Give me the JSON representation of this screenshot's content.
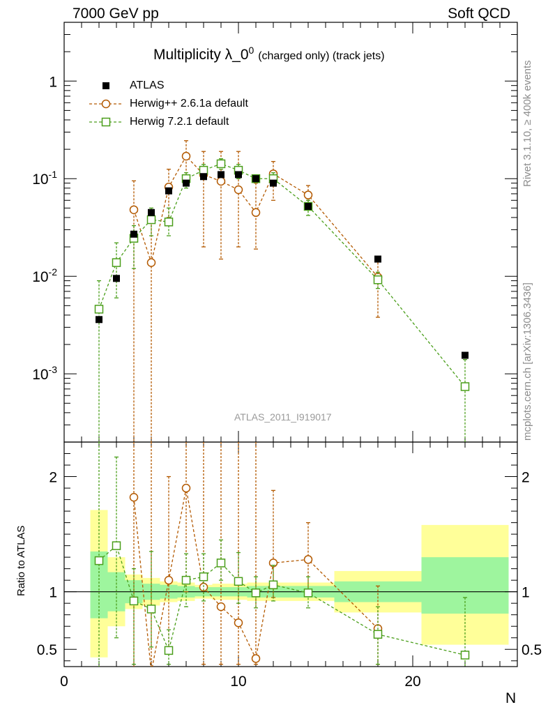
{
  "header": {
    "left": "7000 GeV pp",
    "right": "Soft QCD"
  },
  "side_text": {
    "rivet": "Rivet 3.1.10, ≥ 400k events",
    "source": "mcplots.cern.ch [arXiv:1306.3436]"
  },
  "chart_data": {
    "type": "scatter",
    "title_main": "Multiplicity λ_0",
    "title_sup": "0",
    "title_suffix": "(charged only) (track jets)",
    "watermark": "ATLAS_2011_I919017",
    "xlabel": "N",
    "ylabel_ratio": "Ratio to ATLAS",
    "xlim": [
      0,
      26
    ],
    "ylim_main": [
      0.0002,
      4
    ],
    "ylim_ratio": [
      0.35,
      2.3
    ],
    "x_tick_labels": [
      "0",
      "10",
      "20"
    ],
    "y_main_tick_labels": [
      "10^-3",
      "10^-2",
      "10^-1",
      "1"
    ],
    "y_ratio_tick_labels": [
      "0.5",
      "1",
      "2"
    ],
    "legend": [
      "ATLAS",
      "Herwig++ 2.6.1a default",
      "Herwig 7.2.1 default"
    ],
    "colors": {
      "data": "#000000",
      "herwigpp": "#b35900",
      "herwig7": "#4a9e1a",
      "band_inner": "#9ef59e",
      "band_outer": "#ffff99"
    },
    "data": {
      "x": [
        2,
        3,
        4,
        5,
        6,
        7,
        8,
        9,
        10,
        11,
        12,
        14,
        18,
        23
      ],
      "y": [
        0.0036,
        0.0095,
        0.027,
        0.045,
        0.075,
        0.09,
        0.105,
        0.11,
        0.11,
        0.1,
        0.09,
        0.052,
        0.015,
        0.00155
      ]
    },
    "series": [
      {
        "name": "Herwig++ 2.6.1a default",
        "x": [
          4,
          5,
          6,
          7,
          8,
          9,
          10,
          11,
          12,
          14,
          18
        ],
        "y": [
          0.048,
          0.0138,
          0.082,
          0.17,
          0.11,
          0.094,
          0.077,
          0.045,
          0.112,
          0.068,
          0.0098
        ],
        "y_low": [
          0.0001,
          0.0001,
          0.04,
          0.1,
          0.02,
          0.015,
          0.02,
          0.019,
          0.06,
          0.05,
          0.0038
        ],
        "y_high": [
          0.095,
          0.04,
          0.125,
          0.245,
          0.19,
          0.19,
          0.19,
          0.09,
          0.15,
          0.085,
          0.015
        ],
        "ratio": [
          1.82,
          0.3,
          1.1,
          1.9,
          1.04,
          0.87,
          0.73,
          0.42,
          1.25,
          1.28,
          0.68
        ],
        "ratio_low": [
          0.3,
          0.3,
          0.5,
          1.0,
          0.37,
          0.37,
          0.37,
          0.37,
          0.95,
          1.0,
          0.37
        ],
        "ratio_high": [
          2.3,
          2.3,
          2.0,
          2.3,
          2.3,
          2.3,
          2.3,
          2.3,
          1.88,
          1.6,
          1.05
        ]
      },
      {
        "name": "Herwig 7.2.1 default",
        "x": [
          2,
          3,
          4,
          5,
          6,
          7,
          8,
          9,
          10,
          11,
          12,
          14,
          18,
          23
        ],
        "y": [
          0.0046,
          0.0138,
          0.0245,
          0.038,
          0.036,
          0.1,
          0.122,
          0.142,
          0.122,
          0.1,
          0.1,
          0.052,
          0.0092,
          0.00074
        ],
        "y_low": [
          0.0001,
          0.006,
          0.012,
          0.026,
          0.026,
          0.08,
          0.1,
          0.125,
          0.1,
          0.095,
          0.085,
          0.042,
          0.0075,
          0.0001
        ],
        "y_high": [
          0.009,
          0.022,
          0.033,
          0.05,
          0.05,
          0.115,
          0.14,
          0.16,
          0.14,
          0.105,
          0.115,
          0.06,
          0.011,
          0.0014
        ],
        "ratio": [
          1.27,
          1.4,
          0.92,
          0.85,
          0.49,
          1.1,
          1.13,
          1.25,
          1.09,
          0.99,
          1.06,
          0.99,
          0.63,
          0.45
        ],
        "ratio_low": [
          0.3,
          0.6,
          0.37,
          0.52,
          0.37,
          0.87,
          0.92,
          1.1,
          0.9,
          0.86,
          0.92,
          0.86,
          0.37,
          0.3
        ],
        "ratio_high": [
          2.3,
          2.17,
          1.2,
          1.35,
          0.67,
          1.33,
          1.33,
          1.45,
          1.34,
          1.13,
          1.23,
          1.13,
          0.87,
          0.95
        ]
      }
    ],
    "ratio_band": [
      {
        "x0": 1.5,
        "x1": 2.5,
        "inner": [
          0.77,
          1.35
        ],
        "outer": [
          0.43,
          1.71
        ]
      },
      {
        "x0": 2.5,
        "x1": 3.5,
        "inner": [
          0.83,
          1.17
        ],
        "outer": [
          0.7,
          1.3
        ]
      },
      {
        "x0": 3.5,
        "x1": 4.5,
        "inner": [
          0.9,
          1.1
        ],
        "outer": [
          0.85,
          1.15
        ]
      },
      {
        "x0": 4.5,
        "x1": 5.5,
        "inner": [
          0.93,
          1.07
        ],
        "outer": [
          0.88,
          1.12
        ]
      },
      {
        "x0": 5.5,
        "x1": 6.5,
        "inner": [
          0.94,
          1.06
        ],
        "outer": [
          0.91,
          1.09
        ]
      },
      {
        "x0": 6.5,
        "x1": 7.5,
        "inner": [
          0.95,
          1.05
        ],
        "outer": [
          0.92,
          1.08
        ]
      },
      {
        "x0": 7.5,
        "x1": 8.5,
        "inner": [
          0.96,
          1.04
        ],
        "outer": [
          0.94,
          1.06
        ]
      },
      {
        "x0": 8.5,
        "x1": 9.5,
        "inner": [
          0.96,
          1.04
        ],
        "outer": [
          0.93,
          1.07
        ]
      },
      {
        "x0": 9.5,
        "x1": 10.5,
        "inner": [
          0.96,
          1.04
        ],
        "outer": [
          0.93,
          1.07
        ]
      },
      {
        "x0": 10.5,
        "x1": 11.5,
        "inner": [
          0.95,
          1.05
        ],
        "outer": [
          0.92,
          1.08
        ]
      },
      {
        "x0": 11.5,
        "x1": 12.5,
        "inner": [
          0.95,
          1.05
        ],
        "outer": [
          0.92,
          1.08
        ]
      },
      {
        "x0": 12.5,
        "x1": 15.5,
        "inner": [
          0.95,
          1.05
        ],
        "outer": [
          0.92,
          1.08
        ]
      },
      {
        "x0": 15.5,
        "x1": 20.5,
        "inner": [
          0.91,
          1.09
        ],
        "outer": [
          0.82,
          1.18
        ]
      },
      {
        "x0": 20.5,
        "x1": 25.5,
        "inner": [
          0.81,
          1.3
        ],
        "outer": [
          0.54,
          1.58
        ]
      }
    ]
  }
}
